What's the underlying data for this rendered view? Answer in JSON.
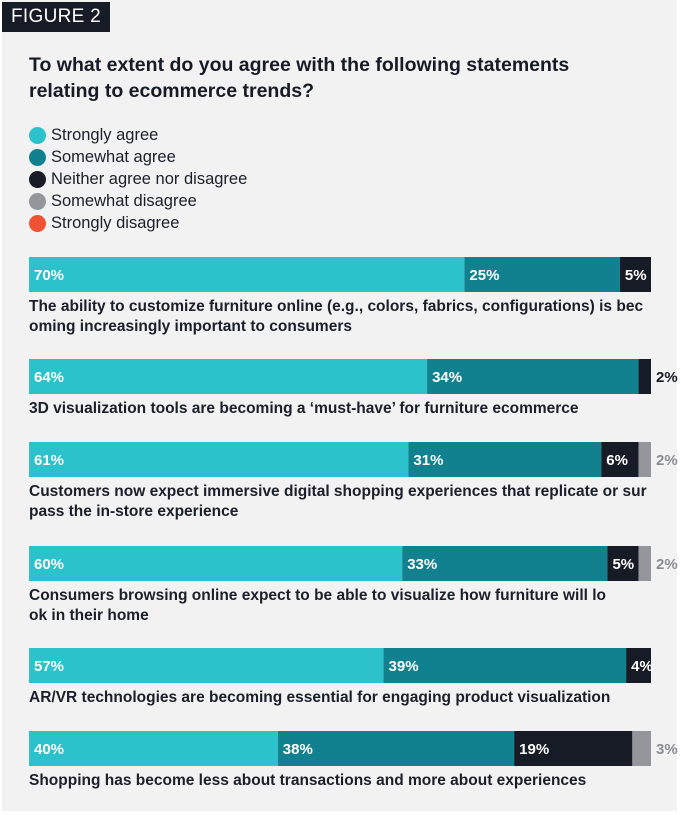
{
  "figure_label": "FIGURE 2",
  "chart_data": {
    "type": "bar",
    "stacked": true,
    "orientation": "horizontal",
    "title": "To what extent do you agree with the following statements relating to ecommerce trends?",
    "series": [
      {
        "name": "Strongly agree",
        "color": "#2cc2cb"
      },
      {
        "name": "Somewhat agree",
        "color": "#12818f"
      },
      {
        "name": "Neither agree nor disagree",
        "color": "#161b26"
      },
      {
        "name": "Somewhat disagree",
        "color": "#95969c"
      },
      {
        "name": "Strongly disagree",
        "color": "#ee5133"
      }
    ],
    "categories": [
      "The ability to customize furniture online (e.g., colors, fabrics, configurations) is becoming increasingly important to consumers",
      "3D visualization tools are becoming a ‘must-have’ for furniture ecommerce",
      "Customers now expect immersive digital shopping experiences that replicate or surpass the in-store experience",
      "Consumers browsing online expect to be able to visualize how furniture will look in their home",
      "AR/VR technologies are becoming essential for engaging product visualization",
      "Shopping has become less about transactions and more about experiences"
    ],
    "values": [
      [
        70,
        25,
        5,
        0,
        0
      ],
      [
        64,
        34,
        2,
        0,
        0
      ],
      [
        61,
        31,
        6,
        2,
        0
      ],
      [
        60,
        33,
        5,
        2,
        0
      ],
      [
        57,
        39,
        4,
        0,
        0
      ],
      [
        40,
        38,
        19,
        3,
        0
      ]
    ],
    "value_labels": [
      [
        "70%",
        "25%",
        "5%",
        "",
        ""
      ],
      [
        "64%",
        "34%",
        "2%",
        "",
        ""
      ],
      [
        "61%",
        "31%",
        "6%",
        "2%",
        ""
      ],
      [
        "60%",
        "33%",
        "5%",
        "2%",
        ""
      ],
      [
        "57%",
        "39%",
        "4%",
        "",
        ""
      ],
      [
        "40%",
        "38%",
        "19%",
        "3%",
        ""
      ]
    ],
    "xlim": [
      0,
      100
    ],
    "grid": false,
    "legend_position": "top-left"
  }
}
